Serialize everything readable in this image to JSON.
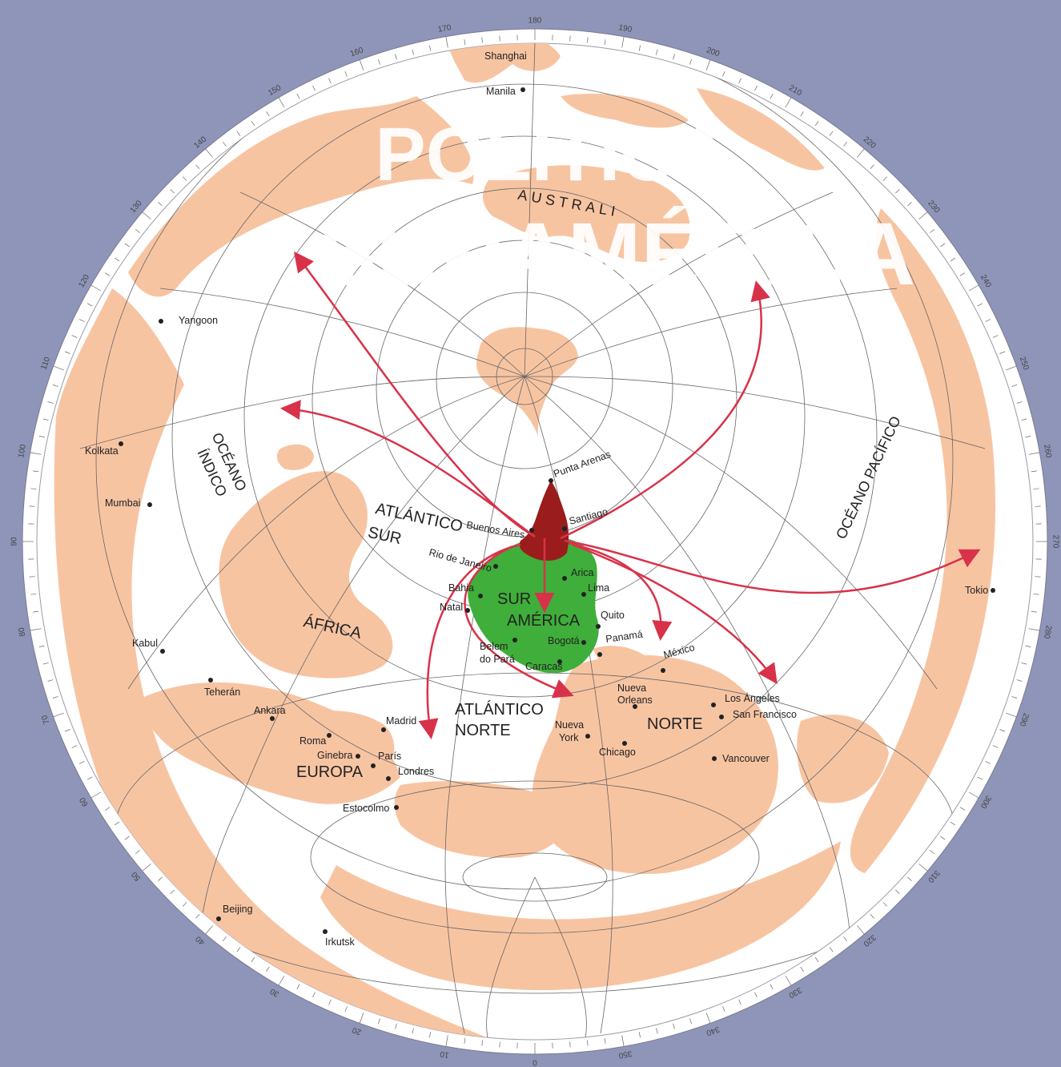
{
  "title": {
    "line1": "POLÍTICA",
    "line2": "SURAMÉRICA"
  },
  "regions": {
    "australia": "AUSTRALI",
    "oceano_indico_1": "OCÉANO",
    "oceano_indico_2": "ÍNDICO",
    "oceano_pacifico": "OCÉANO PACÍFICO",
    "atlantico_sur_1": "ATLÁNTICO",
    "atlantico_sur_2": "SUR",
    "sur_america_1": "SUR",
    "sur_america_2": "AMÉRICA",
    "africa": "ÁFRICA",
    "atlantico_norte_1": "ATLÁNTICO",
    "atlantico_norte_2": "NORTE",
    "norte": "NORTE",
    "europa": "EUROPA"
  },
  "cities": [
    {
      "name": "Shanghai"
    },
    {
      "name": "Manila"
    },
    {
      "name": "Yangoon"
    },
    {
      "name": "Kolkata"
    },
    {
      "name": "Mumbai"
    },
    {
      "name": "Kabul"
    },
    {
      "name": "Teherán"
    },
    {
      "name": "Ankara"
    },
    {
      "name": "Roma"
    },
    {
      "name": "Ginebra"
    },
    {
      "name": "París"
    },
    {
      "name": "Londres"
    },
    {
      "name": "Madrid"
    },
    {
      "name": "Estocolmo"
    },
    {
      "name": "Beijing"
    },
    {
      "name": "Irkutsk"
    },
    {
      "name": "Punta Arenas"
    },
    {
      "name": "Buenos Aires"
    },
    {
      "name": "Santiago"
    },
    {
      "name": "Rio de Janeiro"
    },
    {
      "name": "Arica"
    },
    {
      "name": "Lima"
    },
    {
      "name": "Bahia"
    },
    {
      "name": "Natal"
    },
    {
      "name": "Quito"
    },
    {
      "name": "Belem"
    },
    {
      "name": "do Pará"
    },
    {
      "name": "Bogotá"
    },
    {
      "name": "Panamá"
    },
    {
      "name": "Caracas"
    },
    {
      "name": "México"
    },
    {
      "name": "Nueva"
    },
    {
      "name": "Orleans"
    },
    {
      "name": "Los Ángeles"
    },
    {
      "name": "San Francisco"
    },
    {
      "name": "Nueva"
    },
    {
      "name": "York"
    },
    {
      "name": "Chicago"
    },
    {
      "name": "Vancouver"
    },
    {
      "name": "Tokio"
    }
  ],
  "degrees": [
    "170",
    "180",
    "190",
    "200",
    "210",
    "220",
    "230",
    "240",
    "250",
    "260",
    "270",
    "280",
    "290",
    "300",
    "310",
    "320",
    "330",
    "340",
    "350",
    "0",
    "10",
    "20",
    "30",
    "40",
    "50",
    "60",
    "70",
    "80",
    "90",
    "100",
    "110",
    "120",
    "130",
    "140",
    "150",
    "160"
  ],
  "colors": {
    "background": "#8f95b8",
    "ocean": "#ffffff",
    "land": "#f7c4a2",
    "south_america": "#3fae3a",
    "southern_cone": "#9a1c1c",
    "arrows": "#d8324a",
    "grid": "#555555"
  }
}
